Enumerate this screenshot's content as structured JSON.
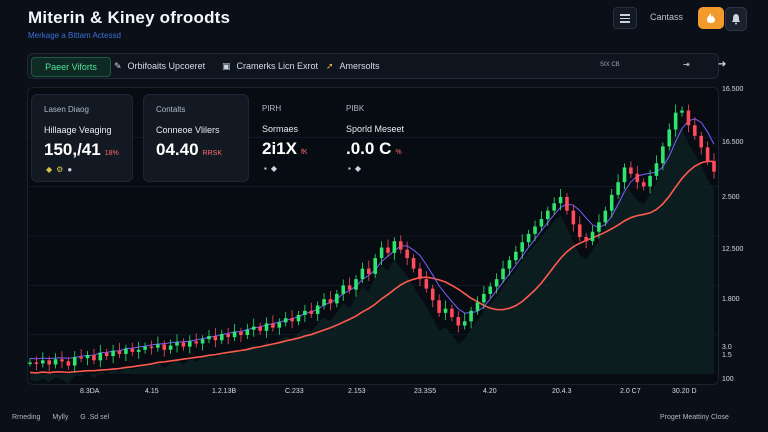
{
  "header": {
    "title": "Miterin & Kiney ofroodts",
    "subtitle": "Merkage a Bittam Actessd",
    "label": "Cantass"
  },
  "tabs": [
    {
      "label": "Paeer Viforts",
      "icon": ""
    },
    {
      "label": "Orbifoaits Upcoeret",
      "icon": "pen-icon"
    },
    {
      "label": "Cramerks Licn Exrot",
      "icon": "square-icon"
    },
    {
      "label": "Amersolts",
      "icon": "brush-icon"
    }
  ],
  "tabbar_right": {
    "label": "SIX CB",
    "icon": "⇥",
    "arrow": "➜"
  },
  "stats": [
    {
      "label": "Lasen Diaog",
      "sub": "Hillaage Veaging",
      "value": "150,/41",
      "change": "18%",
      "icons": [
        "◆",
        "⚙",
        "●"
      ]
    },
    {
      "label": "Contalts",
      "sub": "Conneoe Vlilers",
      "value": "04.40",
      "change": "RRSK",
      "icons": []
    },
    {
      "label": "PIRH",
      "sub": "Sormaes",
      "value": "2i1X",
      "change": "fK",
      "icons": [
        "▪",
        "◆"
      ]
    },
    {
      "label": "PIBK",
      "sub": "Sporld Meseet",
      "value": ".0.0 C",
      "change": "%",
      "icons": [
        "▪",
        "◆"
      ]
    }
  ],
  "y_axis": [
    "16.500",
    "16.500",
    "2.500",
    "12.500",
    "1.800",
    "3.0\n1.5",
    "100"
  ],
  "x_axis": [
    "8.3DA",
    "4.15",
    "1.2.13B",
    "C.233",
    "2.153",
    "23.3S5",
    "4.20",
    "20.4.3",
    "2.0 C7",
    "30.20 D"
  ],
  "chart_data": {
    "type": "candlestick",
    "series": [
      {
        "values": [
          61,
          60,
          63,
          59,
          64,
          62,
          58,
          66,
          65,
          68,
          63,
          70,
          67,
          72,
          69,
          74,
          71,
          73,
          76,
          75,
          78,
          73,
          77,
          80,
          76,
          81,
          79,
          83,
          86,
          82,
          88,
          85,
          90,
          87,
          92,
          95,
          91,
          98,
          94,
          99,
          103,
          100,
          106,
          110,
          107,
          115,
          121,
          117,
          126,
          134,
          130,
          140,
          150,
          145,
          160,
          170,
          165,
          176,
          168,
          160,
          150,
          140,
          131,
          120,
          108,
          112,
          104,
          96,
          100,
          110,
          118,
          126,
          133,
          140,
          150,
          158,
          166,
          175,
          183,
          190,
          197,
          205,
          212,
          218,
          205,
          192,
          180,
          176,
          185,
          194,
          205,
          220,
          232,
          246,
          240,
          232,
          228,
          238,
          250,
          266,
          282,
          298,
          300,
          286,
          276,
          265,
          252,
          242
        ]
      }
    ],
    "moving_averages": [
      {
        "name": "",
        "color": "#ff5a4f"
      },
      {
        "name": "",
        "color": "#7d5cff"
      }
    ],
    "colors": {
      "up": "#2ee66d",
      "down": "#ff4b5c"
    }
  },
  "footer": {
    "left": [
      "Rrneding",
      "Mylly",
      "G .Sd sel"
    ],
    "right": "Proget Meattiny Close"
  }
}
